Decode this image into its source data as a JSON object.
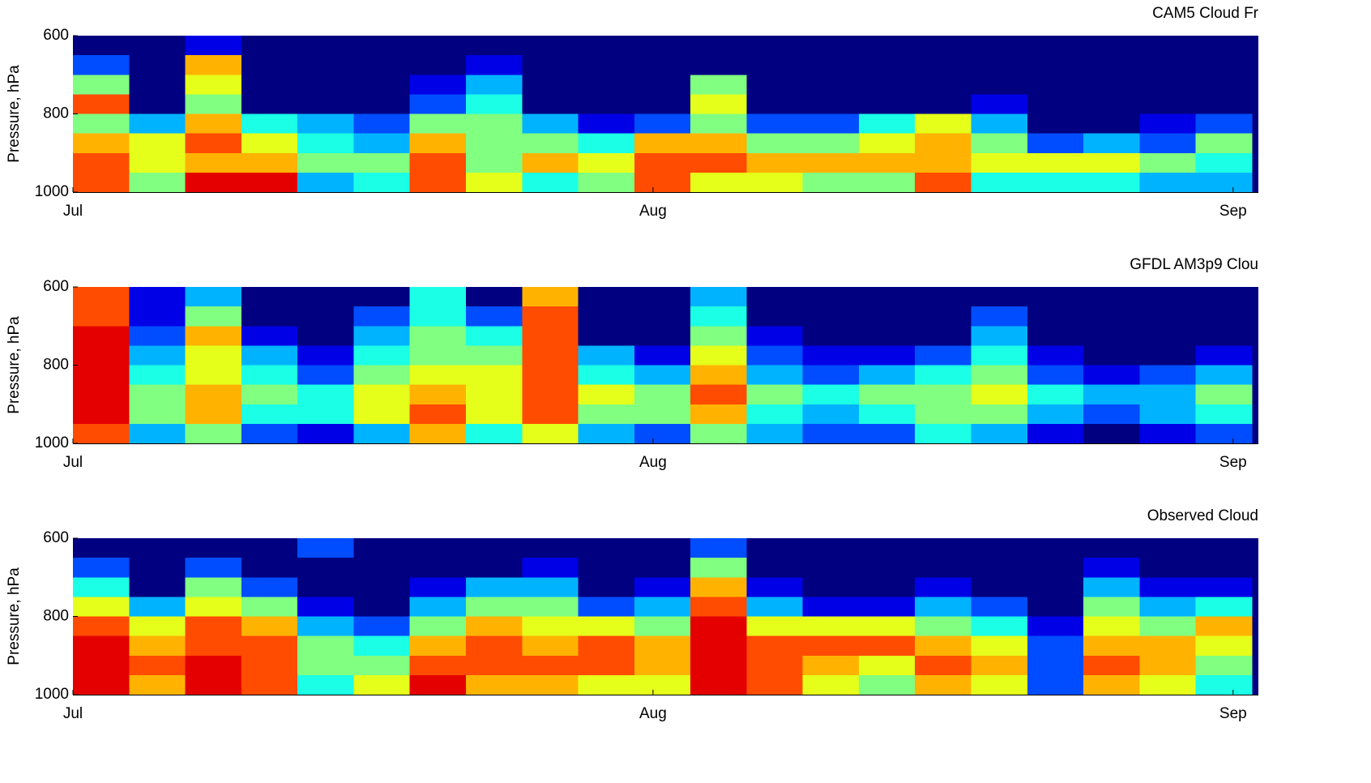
{
  "chart_data": [
    {
      "type": "heatmap",
      "title": "CAM5 Cloud Fr",
      "ylabel": "Pressure, hPa",
      "colormap": "jet",
      "zlim": [
        0,
        1
      ],
      "xlim": [
        0,
        63.35
      ],
      "xticks": [
        {
          "value": 0,
          "label": "Jul"
        },
        {
          "value": 31,
          "label": "Aug"
        },
        {
          "value": 62,
          "label": "Sep"
        }
      ],
      "ylim": [
        1000,
        600
      ],
      "yticks": [
        600,
        800,
        1000
      ],
      "xbins": [
        0,
        3,
        6,
        9,
        12,
        15,
        18,
        21,
        24,
        27,
        30,
        33,
        36,
        39,
        42,
        45,
        48,
        51,
        54,
        57,
        60,
        63
      ],
      "ybins": [
        600,
        650,
        700,
        750,
        800,
        850,
        900,
        950,
        1000
      ],
      "z": [
        [
          0,
          0,
          0.1,
          0,
          0,
          0,
          0,
          0,
          0,
          0,
          0,
          0,
          0,
          0,
          0,
          0,
          0,
          0,
          0,
          0,
          0
        ],
        [
          0.2,
          0,
          0.7,
          0,
          0,
          0,
          0,
          0.1,
          0,
          0,
          0,
          0,
          0,
          0,
          0,
          0,
          0,
          0,
          0,
          0,
          0
        ],
        [
          0.5,
          0,
          0.6,
          0,
          0,
          0,
          0.1,
          0.3,
          0,
          0,
          0,
          0.5,
          0,
          0,
          0,
          0,
          0,
          0,
          0,
          0,
          0
        ],
        [
          0.8,
          0,
          0.5,
          0,
          0,
          0,
          0.2,
          0.4,
          0,
          0,
          0,
          0.6,
          0,
          0,
          0,
          0,
          0.1,
          0,
          0,
          0,
          0
        ],
        [
          0.5,
          0.3,
          0.7,
          0.4,
          0.3,
          0.2,
          0.5,
          0.5,
          0.3,
          0.1,
          0.2,
          0.5,
          0.2,
          0.2,
          0.4,
          0.6,
          0.3,
          0,
          0,
          0.1,
          0.2
        ],
        [
          0.7,
          0.6,
          0.8,
          0.6,
          0.4,
          0.3,
          0.7,
          0.5,
          0.5,
          0.4,
          0.7,
          0.7,
          0.5,
          0.5,
          0.6,
          0.7,
          0.5,
          0.2,
          0.3,
          0.2,
          0.5
        ],
        [
          0.8,
          0.6,
          0.7,
          0.7,
          0.5,
          0.5,
          0.8,
          0.5,
          0.7,
          0.6,
          0.8,
          0.8,
          0.7,
          0.7,
          0.7,
          0.7,
          0.6,
          0.6,
          0.6,
          0.5,
          0.4
        ],
        [
          0.8,
          0.5,
          0.9,
          0.9,
          0.3,
          0.4,
          0.8,
          0.6,
          0.4,
          0.5,
          0.8,
          0.6,
          0.6,
          0.5,
          0.5,
          0.8,
          0.4,
          0.4,
          0.4,
          0.3,
          0.3
        ]
      ]
    },
    {
      "type": "heatmap",
      "title": "GFDL AM3p9 Clou",
      "ylabel": "Pressure, hPa",
      "colormap": "jet",
      "zlim": [
        0,
        1
      ],
      "xlim": [
        0,
        63.35
      ],
      "xticks": [
        {
          "value": 0,
          "label": "Jul"
        },
        {
          "value": 31,
          "label": "Aug"
        },
        {
          "value": 62,
          "label": "Sep"
        }
      ],
      "ylim": [
        1000,
        600
      ],
      "yticks": [
        600,
        800,
        1000
      ],
      "xbins": [
        0,
        3,
        6,
        9,
        12,
        15,
        18,
        21,
        24,
        27,
        30,
        33,
        36,
        39,
        42,
        45,
        48,
        51,
        54,
        57,
        60,
        63
      ],
      "ybins": [
        600,
        650,
        700,
        750,
        800,
        850,
        900,
        950,
        1000
      ],
      "z": [
        [
          0.8,
          0.1,
          0.3,
          0,
          0,
          0,
          0.4,
          0,
          0.7,
          0,
          0,
          0.3,
          0,
          0,
          0,
          0,
          0,
          0,
          0,
          0,
          0
        ],
        [
          0.8,
          0.1,
          0.5,
          0,
          0,
          0.2,
          0.4,
          0.2,
          0.8,
          0,
          0,
          0.4,
          0,
          0,
          0,
          0,
          0.2,
          0,
          0,
          0,
          0
        ],
        [
          0.9,
          0.2,
          0.7,
          0.1,
          0,
          0.3,
          0.5,
          0.4,
          0.8,
          0,
          0,
          0.5,
          0.1,
          0,
          0,
          0,
          0.3,
          0,
          0,
          0,
          0
        ],
        [
          0.9,
          0.3,
          0.6,
          0.3,
          0.1,
          0.4,
          0.5,
          0.5,
          0.8,
          0.3,
          0.1,
          0.6,
          0.2,
          0.1,
          0.1,
          0.2,
          0.4,
          0.1,
          0,
          0,
          0.1
        ],
        [
          0.9,
          0.4,
          0.6,
          0.4,
          0.2,
          0.5,
          0.6,
          0.6,
          0.8,
          0.4,
          0.3,
          0.7,
          0.3,
          0.2,
          0.3,
          0.4,
          0.5,
          0.2,
          0.1,
          0.2,
          0.3
        ],
        [
          0.9,
          0.5,
          0.7,
          0.5,
          0.4,
          0.6,
          0.7,
          0.6,
          0.8,
          0.6,
          0.5,
          0.8,
          0.5,
          0.4,
          0.5,
          0.5,
          0.6,
          0.4,
          0.3,
          0.3,
          0.5
        ],
        [
          0.9,
          0.5,
          0.7,
          0.4,
          0.4,
          0.6,
          0.8,
          0.6,
          0.8,
          0.5,
          0.5,
          0.7,
          0.4,
          0.3,
          0.4,
          0.5,
          0.5,
          0.3,
          0.2,
          0.3,
          0.4
        ],
        [
          0.8,
          0.3,
          0.5,
          0.2,
          0.1,
          0.3,
          0.7,
          0.4,
          0.6,
          0.3,
          0.2,
          0.5,
          0.3,
          0.2,
          0.2,
          0.4,
          0.3,
          0.1,
          0,
          0.1,
          0.2
        ]
      ]
    },
    {
      "type": "heatmap",
      "title": "Observed Cloud",
      "ylabel": "Pressure, hPa",
      "colormap": "jet",
      "zlim": [
        0,
        1
      ],
      "xlim": [
        0,
        63.35
      ],
      "xticks": [
        {
          "value": 0,
          "label": "Jul"
        },
        {
          "value": 31,
          "label": "Aug"
        },
        {
          "value": 62,
          "label": "Sep"
        }
      ],
      "ylim": [
        1000,
        600
      ],
      "yticks": [
        600,
        800,
        1000
      ],
      "xbins": [
        0,
        3,
        6,
        9,
        12,
        15,
        18,
        21,
        24,
        27,
        30,
        33,
        36,
        39,
        42,
        45,
        48,
        51,
        54,
        57,
        60,
        63
      ],
      "ybins": [
        600,
        650,
        700,
        750,
        800,
        850,
        900,
        950,
        1000
      ],
      "z": [
        [
          0,
          0,
          0,
          0,
          0.2,
          0,
          0,
          0,
          0,
          0,
          0,
          0.2,
          0,
          0,
          0,
          0,
          0,
          0,
          0,
          0,
          0
        ],
        [
          0.2,
          0,
          0.2,
          0,
          0,
          0,
          0,
          0,
          0.1,
          0,
          0,
          0.5,
          0,
          0,
          0,
          0,
          0,
          0,
          0.1,
          0,
          0
        ],
        [
          0.4,
          0,
          0.5,
          0.2,
          0,
          0,
          0.1,
          0.3,
          0.3,
          0,
          0.1,
          0.7,
          0.1,
          0,
          0,
          0.1,
          0,
          0,
          0.3,
          0.1,
          0.1
        ],
        [
          0.6,
          0.3,
          0.6,
          0.5,
          0.1,
          0,
          0.3,
          0.5,
          0.5,
          0.2,
          0.3,
          0.8,
          0.3,
          0.1,
          0.1,
          0.3,
          0.2,
          0,
          0.5,
          0.3,
          0.4
        ],
        [
          0.8,
          0.6,
          0.8,
          0.7,
          0.3,
          0.2,
          0.5,
          0.7,
          0.6,
          0.6,
          0.5,
          0.9,
          0.6,
          0.6,
          0.6,
          0.5,
          0.4,
          0.1,
          0.6,
          0.5,
          0.7
        ],
        [
          0.9,
          0.7,
          0.8,
          0.8,
          0.5,
          0.4,
          0.7,
          0.8,
          0.7,
          0.8,
          0.7,
          0.9,
          0.8,
          0.8,
          0.8,
          0.7,
          0.6,
          0.2,
          0.7,
          0.7,
          0.6
        ],
        [
          0.9,
          0.8,
          0.9,
          0.8,
          0.5,
          0.5,
          0.8,
          0.8,
          0.8,
          0.8,
          0.7,
          0.9,
          0.8,
          0.7,
          0.6,
          0.8,
          0.7,
          0.2,
          0.8,
          0.7,
          0.5
        ],
        [
          0.9,
          0.7,
          0.9,
          0.8,
          0.4,
          0.6,
          0.9,
          0.7,
          0.7,
          0.6,
          0.6,
          0.9,
          0.8,
          0.6,
          0.5,
          0.7,
          0.6,
          0.2,
          0.7,
          0.6,
          0.4
        ]
      ]
    }
  ]
}
